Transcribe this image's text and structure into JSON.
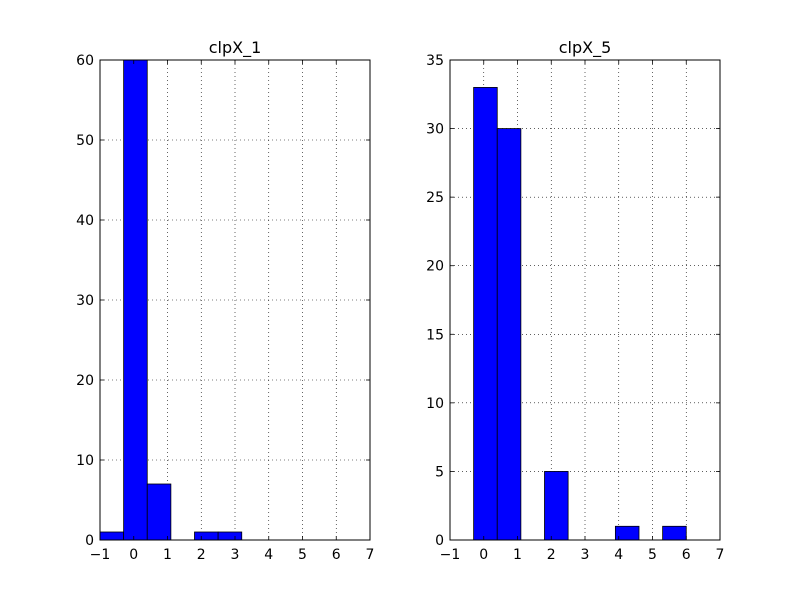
{
  "chart_data": [
    {
      "type": "bar",
      "title": "clpX_1",
      "xlim": [
        -1,
        7
      ],
      "ylim": [
        0,
        60
      ],
      "xticks": [
        -1,
        0,
        1,
        2,
        3,
        4,
        5,
        6,
        7
      ],
      "yticks": [
        0,
        10,
        20,
        30,
        40,
        50,
        60
      ],
      "bin_width": 0.7,
      "bins": [
        {
          "x0": -1.0,
          "count": 1
        },
        {
          "x0": -0.3,
          "count": 60
        },
        {
          "x0": 0.4,
          "count": 7
        },
        {
          "x0": 1.1,
          "count": 0
        },
        {
          "x0": 1.8,
          "count": 1
        },
        {
          "x0": 2.5,
          "count": 1
        }
      ],
      "grid": true,
      "color": "#0000ff"
    },
    {
      "type": "bar",
      "title": "clpX_5",
      "xlim": [
        -1,
        7
      ],
      "ylim": [
        0,
        35
      ],
      "xticks": [
        -1,
        0,
        1,
        2,
        3,
        4,
        5,
        6,
        7
      ],
      "yticks": [
        0,
        5,
        10,
        15,
        20,
        25,
        30,
        35
      ],
      "bin_width": 0.7,
      "bins": [
        {
          "x0": -0.3,
          "count": 33
        },
        {
          "x0": 0.4,
          "count": 30
        },
        {
          "x0": 1.1,
          "count": 0
        },
        {
          "x0": 1.8,
          "count": 5
        },
        {
          "x0": 2.5,
          "count": 0
        },
        {
          "x0": 3.2,
          "count": 0
        },
        {
          "x0": 3.9,
          "count": 1
        },
        {
          "x0": 4.6,
          "count": 0
        },
        {
          "x0": 5.3,
          "count": 1
        }
      ],
      "grid": true,
      "color": "#0000ff"
    }
  ]
}
